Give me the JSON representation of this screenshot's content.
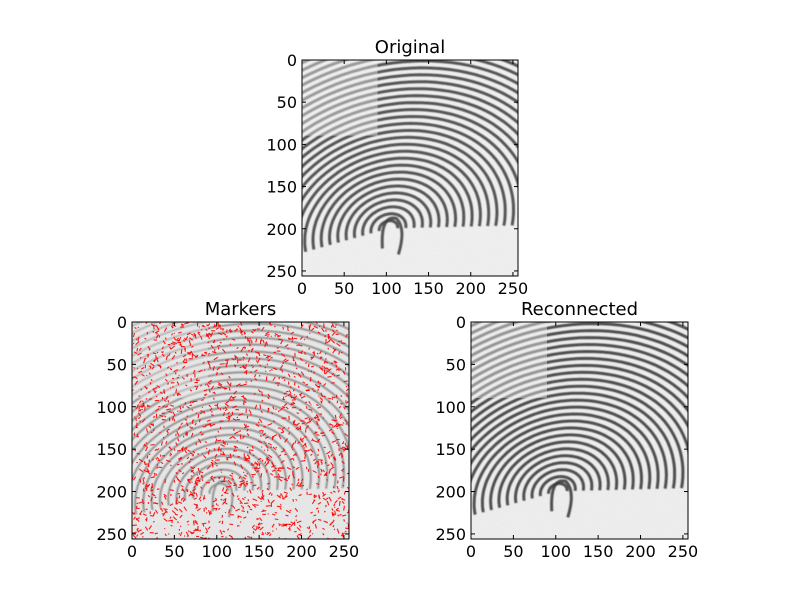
{
  "chart_data": [
    {
      "type": "heatmap",
      "title": "Original",
      "image": "grayscale fingerprint",
      "xlim": [
        0,
        256
      ],
      "ylim": [
        256,
        0
      ],
      "xticks": [
        0,
        50,
        100,
        150,
        200,
        250
      ],
      "yticks": [
        0,
        50,
        100,
        150,
        200,
        250
      ],
      "colors": {
        "ridge": "#333333",
        "valley": "#f2f2f2"
      }
    },
    {
      "type": "heatmap",
      "title": "Markers",
      "image": "fingerprint with red marker points",
      "xlim": [
        0,
        256
      ],
      "ylim": [
        256,
        0
      ],
      "xticks": [
        0,
        50,
        100,
        150,
        200,
        250
      ],
      "yticks": [
        0,
        50,
        100,
        150,
        200,
        250
      ],
      "colors": {
        "ridge": "#8a8a8a",
        "valley": "#e9e9e9",
        "marker": "#ff0000"
      }
    },
    {
      "type": "heatmap",
      "title": "Reconnected",
      "image": "grayscale reconnected fingerprint",
      "xlim": [
        0,
        256
      ],
      "ylim": [
        256,
        0
      ],
      "xticks": [
        0,
        50,
        100,
        150,
        200,
        250
      ],
      "yticks": [
        0,
        50,
        100,
        150,
        200,
        250
      ],
      "colors": {
        "ridge": "#2a2a2a",
        "valley": "#f0f0f0"
      }
    }
  ]
}
